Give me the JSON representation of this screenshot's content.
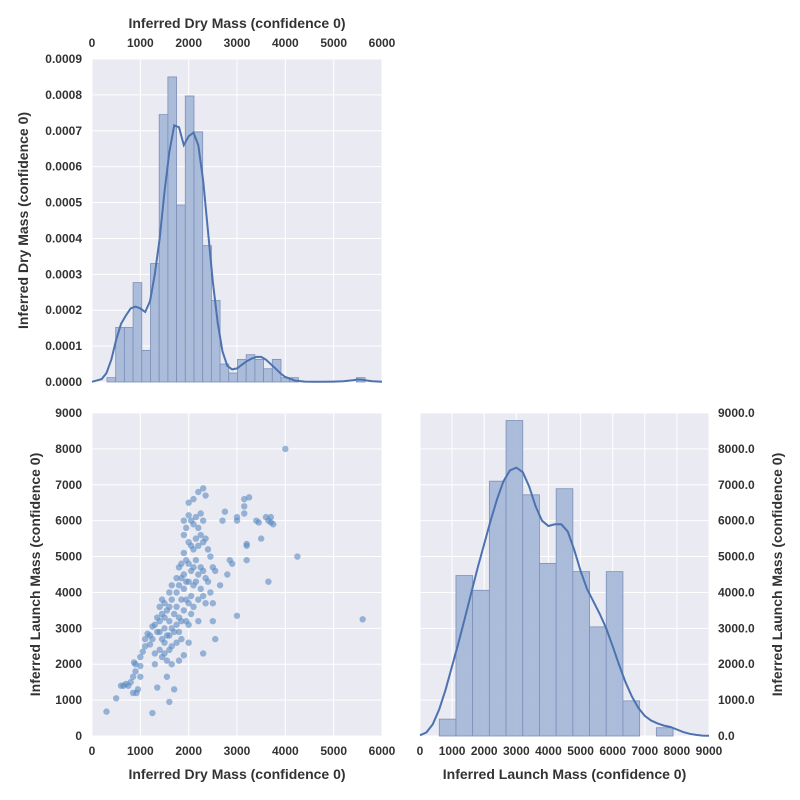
{
  "colors": {
    "panel_bg": "#EAEAF2",
    "grid": "#FFFFFF",
    "accent": "#4C72B0",
    "bar_fill": "#A8B9D8",
    "bar_edge": "#7C8FB8",
    "point": "#5A8BC2",
    "text": "#333333"
  },
  "chart_data": [
    {
      "panel": "dry-mass-histogram",
      "type": "bar",
      "x_axis": {
        "label": "Inferred Dry Mass (confidence 0)",
        "position": "top",
        "range": [
          0,
          6000
        ],
        "ticks": [
          0,
          1000,
          2000,
          3000,
          4000,
          5000,
          6000
        ],
        "tick_labels": [
          "0",
          "1000",
          "2000",
          "3000",
          "4000",
          "5000",
          "6000"
        ]
      },
      "y_axis": {
        "label": "Inferred Dry Mass (confidence 0)",
        "position": "left",
        "range": [
          0,
          0.0009
        ],
        "ticks": [
          0,
          0.0001,
          0.0002,
          0.0003,
          0.0004,
          0.0005,
          0.0006,
          0.0007,
          0.0008,
          0.0009
        ],
        "tick_labels": [
          "0.0000",
          "0.0001",
          "0.0002",
          "0.0003",
          "0.0004",
          "0.0005",
          "0.0006",
          "0.0007",
          "0.0008",
          "0.0009"
        ]
      },
      "grid": true,
      "bins": [
        {
          "x0": 310,
          "x1": 490,
          "value": 1.2e-05
        },
        {
          "x0": 490,
          "x1": 670,
          "value": 0.000152
        },
        {
          "x0": 670,
          "x1": 850,
          "value": 0.000152
        },
        {
          "x0": 850,
          "x1": 1030,
          "value": 0.000277
        },
        {
          "x0": 1030,
          "x1": 1210,
          "value": 8.8e-05
        },
        {
          "x0": 1210,
          "x1": 1390,
          "value": 0.00033
        },
        {
          "x0": 1390,
          "x1": 1570,
          "value": 0.000745
        },
        {
          "x0": 1570,
          "x1": 1750,
          "value": 0.00085
        },
        {
          "x0": 1750,
          "x1": 1930,
          "value": 0.000493
        },
        {
          "x0": 1930,
          "x1": 2110,
          "value": 0.000797
        },
        {
          "x0": 2110,
          "x1": 2290,
          "value": 0.000697
        },
        {
          "x0": 2290,
          "x1": 2470,
          "value": 0.00038
        },
        {
          "x0": 2470,
          "x1": 2650,
          "value": 0.000227
        },
        {
          "x0": 2650,
          "x1": 2830,
          "value": 5e-05
        },
        {
          "x0": 2830,
          "x1": 3010,
          "value": 2.5e-05
        },
        {
          "x0": 3010,
          "x1": 3190,
          "value": 6.3e-05
        },
        {
          "x0": 3190,
          "x1": 3370,
          "value": 7.6e-05
        },
        {
          "x0": 3370,
          "x1": 3550,
          "value": 6.3e-05
        },
        {
          "x0": 3550,
          "x1": 3730,
          "value": 3.7e-05
        },
        {
          "x0": 3730,
          "x1": 3910,
          "value": 6.3e-05
        },
        {
          "x0": 3910,
          "x1": 4090,
          "value": 1.2e-05
        },
        {
          "x0": 4090,
          "x1": 4270,
          "value": 1.2e-05
        },
        {
          "x0": 5470,
          "x1": 5650,
          "value": 1.2e-05
        }
      ],
      "kde": {
        "x": [
          0,
          200,
          300,
          400,
          500,
          600,
          700,
          800,
          900,
          1000,
          1100,
          1200,
          1300,
          1400,
          1500,
          1600,
          1700,
          1800,
          1900,
          2000,
          2100,
          2200,
          2300,
          2400,
          2500,
          2600,
          2700,
          2800,
          2900,
          3000,
          3100,
          3200,
          3300,
          3400,
          3500,
          3600,
          3700,
          3800,
          3900,
          4000,
          4200,
          4400,
          4600,
          4800,
          5000,
          5200,
          5400,
          5500,
          5600,
          5700,
          5800,
          6000
        ],
        "y": [
          5e-07,
          8e-06,
          2.5e-05,
          6.2e-05,
          0.000118,
          0.000162,
          0.000185,
          0.000205,
          0.00021,
          0.000205,
          0.000195,
          0.000225,
          0.0003,
          0.0004,
          0.00053,
          0.00064,
          0.000715,
          0.00071,
          0.00066,
          0.000685,
          0.000695,
          0.00066,
          0.00056,
          0.00042,
          0.00028,
          0.000165,
          8.5e-05,
          4.5e-05,
          3.5e-05,
          3.8e-05,
          4.8e-05,
          5.8e-05,
          6.5e-05,
          7e-05,
          7e-05,
          6.2e-05,
          5e-05,
          3.7e-05,
          2.4e-05,
          1.4e-05,
          4e-06,
          1e-06,
          5e-07,
          5e-07,
          1e-06,
          2e-06,
          5e-06,
          7e-06,
          6e-06,
          4e-06,
          2e-06,
          5e-07
        ]
      }
    },
    {
      "panel": "scatter",
      "type": "scatter",
      "x_axis": {
        "label": "Inferred Dry Mass (confidence 0)",
        "position": "bottom",
        "range": [
          0,
          6000
        ],
        "ticks": [
          0,
          1000,
          2000,
          3000,
          4000,
          5000,
          6000
        ],
        "tick_labels": [
          "0",
          "1000",
          "2000",
          "3000",
          "4000",
          "5000",
          "6000"
        ]
      },
      "y_axis": {
        "label": "Inferred Launch Mass (confidence 0)",
        "position": "left",
        "range": [
          0,
          9000
        ],
        "ticks": [
          0,
          1000,
          2000,
          3000,
          4000,
          5000,
          6000,
          7000,
          8000,
          9000
        ],
        "tick_labels": [
          "0",
          "1000",
          "2000",
          "3000",
          "4000",
          "5000",
          "6000",
          "7000",
          "8000",
          "9000"
        ]
      },
      "grid": true,
      "points": [
        [
          300,
          680
        ],
        [
          500,
          1050
        ],
        [
          600,
          1400
        ],
        [
          650,
          1400
        ],
        [
          700,
          1450
        ],
        [
          750,
          1400
        ],
        [
          800,
          1500
        ],
        [
          850,
          1200
        ],
        [
          850,
          1650
        ],
        [
          870,
          2050
        ],
        [
          900,
          2000
        ],
        [
          900,
          1800
        ],
        [
          920,
          1200
        ],
        [
          950,
          1300
        ],
        [
          1000,
          2200
        ],
        [
          1000,
          1950
        ],
        [
          1000,
          1650
        ],
        [
          1050,
          2350
        ],
        [
          1100,
          2700
        ],
        [
          1100,
          2500
        ],
        [
          1150,
          2850
        ],
        [
          1200,
          2800
        ],
        [
          1200,
          2550
        ],
        [
          1250,
          3050
        ],
        [
          1250,
          2700
        ],
        [
          1250,
          640
        ],
        [
          1300,
          3100
        ],
        [
          1300,
          2300
        ],
        [
          1300,
          2000
        ],
        [
          1350,
          3300
        ],
        [
          1350,
          2900
        ],
        [
          1350,
          1350
        ],
        [
          1400,
          3600
        ],
        [
          1400,
          3200
        ],
        [
          1400,
          2900
        ],
        [
          1400,
          2400
        ],
        [
          1450,
          3800
        ],
        [
          1450,
          3400
        ],
        [
          1450,
          2700
        ],
        [
          1450,
          2200
        ],
        [
          1500,
          3700
        ],
        [
          1500,
          3300
        ],
        [
          1500,
          3000
        ],
        [
          1500,
          2600
        ],
        [
          1500,
          2300
        ],
        [
          1550,
          3500
        ],
        [
          1550,
          2800
        ],
        [
          1550,
          2100
        ],
        [
          1550,
          1650
        ],
        [
          1600,
          4000
        ],
        [
          1600,
          3600
        ],
        [
          1600,
          3200
        ],
        [
          1600,
          2800
        ],
        [
          1600,
          2400
        ],
        [
          1600,
          950
        ],
        [
          1650,
          4200
        ],
        [
          1650,
          3800
        ],
        [
          1650,
          3000
        ],
        [
          1650,
          2500
        ],
        [
          1650,
          2000
        ],
        [
          1700,
          3400
        ],
        [
          1700,
          2900
        ],
        [
          1700,
          1300
        ],
        [
          1750,
          4400
        ],
        [
          1750,
          4000
        ],
        [
          1750,
          3600
        ],
        [
          1750,
          3100
        ],
        [
          1750,
          2600
        ],
        [
          1800,
          4700
        ],
        [
          1800,
          4200
        ],
        [
          1800,
          3300
        ],
        [
          1800,
          2900
        ],
        [
          1800,
          2100
        ],
        [
          1850,
          4800
        ],
        [
          1850,
          4400
        ],
        [
          1850,
          3800
        ],
        [
          1850,
          3200
        ],
        [
          1850,
          2700
        ],
        [
          1900,
          6000
        ],
        [
          1900,
          5600
        ],
        [
          1900,
          5100
        ],
        [
          1900,
          4500
        ],
        [
          1900,
          4100
        ],
        [
          1900,
          3500
        ],
        [
          1900,
          2250
        ],
        [
          1950,
          5800
        ],
        [
          1950,
          4900
        ],
        [
          1950,
          4300
        ],
        [
          1950,
          3800
        ],
        [
          1950,
          3200
        ],
        [
          2000,
          6500
        ],
        [
          2000,
          6150
        ],
        [
          2000,
          5400
        ],
        [
          2000,
          4800
        ],
        [
          2000,
          4300
        ],
        [
          2000,
          3700
        ],
        [
          2000,
          3100
        ],
        [
          2000,
          2600
        ],
        [
          2050,
          6000
        ],
        [
          2050,
          5300
        ],
        [
          2050,
          4600
        ],
        [
          2050,
          3900
        ],
        [
          2050,
          3400
        ],
        [
          2100,
          6600
        ],
        [
          2100,
          5900
        ],
        [
          2100,
          5200
        ],
        [
          2100,
          4700
        ],
        [
          2100,
          4200
        ],
        [
          2100,
          3600
        ],
        [
          2150,
          6100
        ],
        [
          2150,
          5500
        ],
        [
          2150,
          4900
        ],
        [
          2150,
          4300
        ],
        [
          2200,
          6800
        ],
        [
          2200,
          5800
        ],
        [
          2200,
          5300
        ],
        [
          2200,
          4500
        ],
        [
          2200,
          3800
        ],
        [
          2200,
          3200
        ],
        [
          2250,
          6200
        ],
        [
          2250,
          5600
        ],
        [
          2250,
          4700
        ],
        [
          2250,
          4100
        ],
        [
          2300,
          6900
        ],
        [
          2300,
          6000
        ],
        [
          2300,
          5400
        ],
        [
          2300,
          4600
        ],
        [
          2300,
          3900
        ],
        [
          2300,
          2300
        ],
        [
          2350,
          6700
        ],
        [
          2350,
          5500
        ],
        [
          2350,
          4400
        ],
        [
          2350,
          3700
        ],
        [
          2400,
          5200
        ],
        [
          2400,
          4300
        ],
        [
          2450,
          5000
        ],
        [
          2450,
          4000
        ],
        [
          2500,
          4700
        ],
        [
          2500,
          3700
        ],
        [
          2500,
          3200
        ],
        [
          2550,
          4600
        ],
        [
          2550,
          2700
        ],
        [
          2650,
          4200
        ],
        [
          2700,
          6000
        ],
        [
          2750,
          6250
        ],
        [
          2800,
          4500
        ],
        [
          2850,
          4900
        ],
        [
          2900,
          4800
        ],
        [
          3000,
          6000
        ],
        [
          3000,
          3350
        ],
        [
          3000,
          6100
        ],
        [
          3150,
          6600
        ],
        [
          3150,
          6400
        ],
        [
          3150,
          6200
        ],
        [
          3200,
          5300
        ],
        [
          3200,
          5350
        ],
        [
          3200,
          4900
        ],
        [
          3250,
          6650
        ],
        [
          3400,
          6000
        ],
        [
          3450,
          5950
        ],
        [
          3500,
          5500
        ],
        [
          3600,
          6100
        ],
        [
          3650,
          6000
        ],
        [
          3700,
          6100
        ],
        [
          3700,
          5950
        ],
        [
          3750,
          5900
        ],
        [
          3650,
          4300
        ],
        [
          4000,
          8000
        ],
        [
          4250,
          5000
        ],
        [
          5600,
          3250
        ]
      ]
    },
    {
      "panel": "launch-mass-histogram",
      "type": "bar",
      "x_axis": {
        "label": "Inferred Launch Mass (confidence 0)",
        "position": "bottom",
        "range": [
          0,
          9000
        ],
        "ticks": [
          0,
          1000,
          2000,
          3000,
          4000,
          5000,
          6000,
          7000,
          8000,
          9000
        ],
        "tick_labels": [
          "0",
          "1000",
          "2000",
          "3000",
          "4000",
          "5000",
          "6000",
          "7000",
          "8000",
          "9000"
        ]
      },
      "y_axis": {
        "label": "Inferred Launch Mass (confidence 0)",
        "position": "right",
        "range": [
          0,
          9000
        ],
        "ticks": [
          0,
          1000,
          2000,
          3000,
          4000,
          5000,
          6000,
          7000,
          8000,
          9000
        ],
        "tick_labels": [
          "0.0",
          "1000.0",
          "2000.0",
          "3000.0",
          "4000.0",
          "5000.0",
          "6000.0",
          "7000.0",
          "8000.0",
          "9000.0"
        ]
      },
      "grid": true,
      "bins": [
        {
          "x0": 600,
          "x1": 1120,
          "value": 470
        },
        {
          "x0": 1120,
          "x1": 1640,
          "value": 4470
        },
        {
          "x0": 1640,
          "x1": 2160,
          "value": 4060
        },
        {
          "x0": 2160,
          "x1": 2680,
          "value": 7100
        },
        {
          "x0": 2680,
          "x1": 3200,
          "value": 8790
        },
        {
          "x0": 3200,
          "x1": 3720,
          "value": 6720
        },
        {
          "x0": 3720,
          "x1": 4240,
          "value": 4810
        },
        {
          "x0": 4240,
          "x1": 4760,
          "value": 6890
        },
        {
          "x0": 4760,
          "x1": 5280,
          "value": 4580
        },
        {
          "x0": 5280,
          "x1": 5800,
          "value": 3040
        },
        {
          "x0": 5800,
          "x1": 6320,
          "value": 4580
        },
        {
          "x0": 6320,
          "x1": 6840,
          "value": 980
        },
        {
          "x0": 7360,
          "x1": 7880,
          "value": 230
        }
      ],
      "kde": {
        "x": [
          0,
          200,
          400,
          600,
          800,
          1000,
          1200,
          1400,
          1600,
          1800,
          2000,
          2200,
          2400,
          2600,
          2800,
          3000,
          3200,
          3400,
          3600,
          3800,
          4000,
          4200,
          4400,
          4600,
          4800,
          5000,
          5200,
          5400,
          5600,
          5800,
          6000,
          6200,
          6400,
          6600,
          6800,
          7000,
          7200,
          7400,
          7600,
          7800,
          8000,
          8200,
          8400,
          8600,
          8800,
          9000
        ],
        "y": [
          20,
          100,
          330,
          750,
          1300,
          1950,
          2600,
          3300,
          4000,
          4700,
          5350,
          6000,
          6600,
          7100,
          7400,
          7480,
          7350,
          6950,
          6400,
          6000,
          5850,
          5900,
          5900,
          5700,
          5200,
          4600,
          4100,
          3750,
          3400,
          3000,
          2500,
          1980,
          1500,
          1100,
          780,
          560,
          430,
          350,
          290,
          250,
          180,
          110,
          60,
          30,
          12,
          5
        ]
      }
    }
  ]
}
